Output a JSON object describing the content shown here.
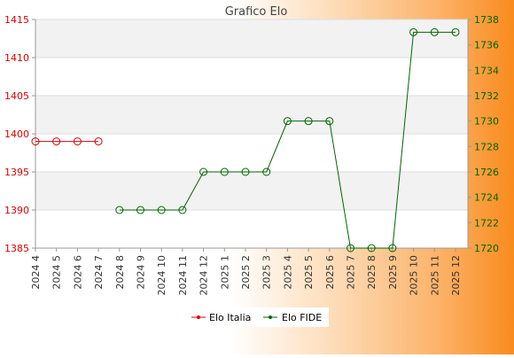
{
  "chart_data": {
    "type": "line",
    "title": "Grafico Elo",
    "categories": [
      "2024 4",
      "2024 5",
      "2024 6",
      "2024 7",
      "2024 8",
      "2024 9",
      "2024 10",
      "2024 11",
      "2024 12",
      "2025 1",
      "2025 2",
      "2025 3",
      "2025 4",
      "2025 5",
      "2025 6",
      "2025 7",
      "2025 8",
      "2025 9",
      "2025 10",
      "2025 11",
      "2025 12"
    ],
    "y_left": {
      "min": 1385,
      "max": 1415,
      "ticks": [
        1385,
        1390,
        1395,
        1400,
        1405,
        1410,
        1415
      ],
      "color": "#dd0000"
    },
    "y_right": {
      "min": 1720,
      "max": 1738,
      "ticks": [
        1720,
        1722,
        1724,
        1726,
        1728,
        1730,
        1732,
        1734,
        1736,
        1738
      ],
      "color": "#006600"
    },
    "series": [
      {
        "name": "Elo Italia",
        "axis": "left",
        "color": "#dd0000",
        "values": [
          1399,
          1399,
          1399,
          1399,
          null,
          null,
          null,
          null,
          null,
          null,
          null,
          null,
          null,
          null,
          null,
          null,
          null,
          null,
          null,
          null,
          null
        ]
      },
      {
        "name": "Elo FIDE",
        "axis": "right",
        "color": "#006600",
        "values": [
          null,
          null,
          null,
          null,
          1723,
          1723,
          1723,
          1723,
          1726,
          1726,
          1726,
          1726,
          1730,
          1730,
          1730,
          1720,
          1720,
          1720,
          1737,
          1737,
          1737
        ]
      }
    ],
    "grid": "horizontal",
    "legend": "bottom-center"
  }
}
